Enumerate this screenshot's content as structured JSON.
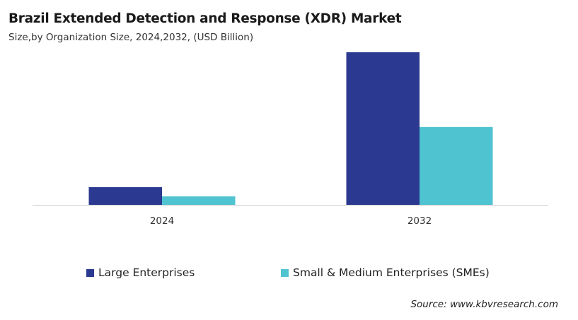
{
  "chart_data": {
    "type": "bar",
    "title": "Brazil Extended Detection and Response (XDR) Market",
    "subtitle": "Size,by Organization Size, 2024,2032, (USD Billion)",
    "categories": [
      "2024",
      "2032"
    ],
    "series": [
      {
        "name": "Large Enterprises",
        "color": "#2b3990",
        "values": [
          0.23,
          1.98
        ]
      },
      {
        "name": "Small & Medium Enterprises (SMEs)",
        "color": "#4fc3d0",
        "values": [
          0.11,
          1.01
        ]
      }
    ],
    "xlabel": "",
    "ylabel": "",
    "ylim": [
      0,
      2.2
    ],
    "grid": false,
    "legend": "bottom"
  },
  "source": "Source: www.kbvresearch.com"
}
